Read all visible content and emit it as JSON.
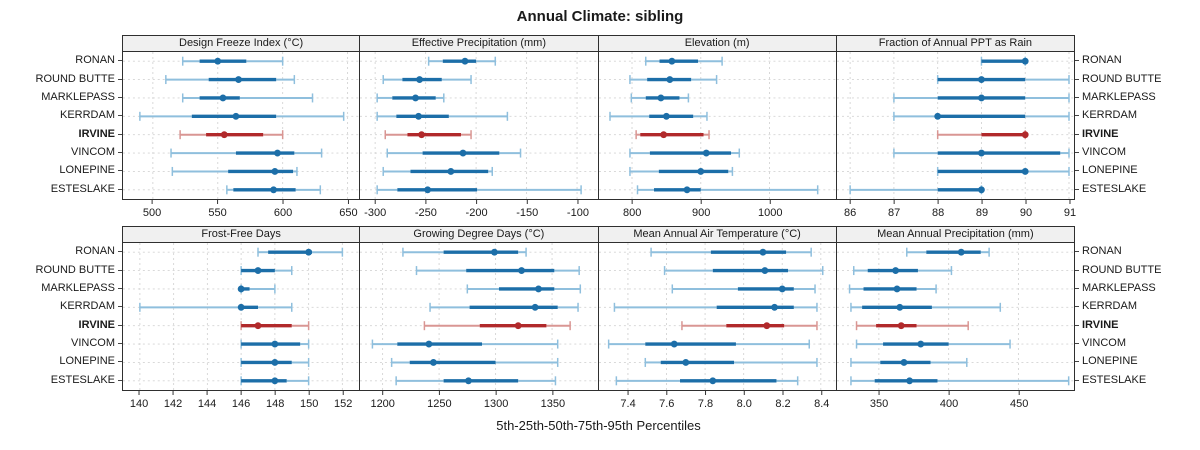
{
  "title": "Annual Climate: sibling",
  "xlabel": "5th-25th-50th-75th-95th Percentiles",
  "stations": [
    "RONAN",
    "ROUND BUTTE",
    "MARKLEPASS",
    "KERRDAM",
    "IRVINE",
    "VINCOM",
    "LONEPINE",
    "ESTESLAKE"
  ],
  "highlight_station": "IRVINE",
  "colors": {
    "series_dark": "#1C6EA8",
    "series_light": "#8FBFDD",
    "highlight_dark": "#B1292B",
    "highlight_light": "#D99693",
    "grid": "#D4D4D4",
    "strip_bg": "#F0F0F0",
    "border": "#2F2F2F"
  },
  "chart_data": {
    "type": "scatter",
    "style": "trellis dot-whisker percentile plot (5th-25th-50th-75th-95th)",
    "percentile_labels": [
      "5th",
      "25th",
      "50th",
      "75th",
      "95th"
    ],
    "layout": {
      "rows": 2,
      "cols": 4,
      "grid": "dotted",
      "y_categories_shared": true
    },
    "panels": [
      {
        "title": "Design Freeze Index (°C)",
        "domain": [
          477,
          659
        ],
        "ticks": [
          500,
          550,
          600,
          650
        ],
        "tick_labels": [
          "500",
          "550",
          "600",
          "650"
        ],
        "rows": [
          {
            "station": "RONAN",
            "values": [
              523,
              536,
              550,
              572,
              600
            ]
          },
          {
            "station": "ROUND BUTTE",
            "values": [
              510,
              543,
              566,
              595,
              609
            ]
          },
          {
            "station": "MARKLEPASS",
            "values": [
              523,
              536,
              554,
              567,
              623
            ]
          },
          {
            "station": "KERRDAM",
            "values": [
              490,
              530,
              564,
              595,
              647
            ]
          },
          {
            "station": "IRVINE",
            "values": [
              521,
              541,
              555,
              585,
              600
            ]
          },
          {
            "station": "VINCOM",
            "values": [
              514,
              564,
              596,
              609,
              630
            ]
          },
          {
            "station": "LONEPINE",
            "values": [
              515,
              558,
              594,
              608,
              611
            ]
          },
          {
            "station": "ESTESLAKE",
            "values": [
              557,
              562,
              593,
              610,
              629
            ]
          }
        ]
      },
      {
        "title": "Effective Precipitation (mm)",
        "domain": [
          -315,
          -80
        ],
        "ticks": [
          -300,
          -250,
          -200,
          -150,
          -100
        ],
        "tick_labels": [
          "-300",
          "-250",
          "-200",
          "-150",
          "-100"
        ],
        "rows": [
          {
            "station": "RONAN",
            "values": [
              -247,
              -233,
              -211,
              -200,
              -181
            ]
          },
          {
            "station": "ROUND BUTTE",
            "values": [
              -292,
              -273,
              -256,
              -234,
              -205
            ]
          },
          {
            "station": "MARKLEPASS",
            "values": [
              -298,
              -283,
              -260,
              -240,
              -232
            ]
          },
          {
            "station": "KERRDAM",
            "values": [
              -298,
              -279,
              -257,
              -227,
              -169
            ]
          },
          {
            "station": "IRVINE",
            "values": [
              -290,
              -268,
              -254,
              -215,
              -205
            ]
          },
          {
            "station": "VINCOM",
            "values": [
              -288,
              -253,
              -213,
              -177,
              -156
            ]
          },
          {
            "station": "LONEPINE",
            "values": [
              -292,
              -265,
              -225,
              -188,
              -184
            ]
          },
          {
            "station": "ESTESLAKE",
            "values": [
              -298,
              -278,
              -248,
              -199,
              -96
            ]
          }
        ]
      },
      {
        "title": "Elevation (m)",
        "domain": [
          752,
          1097
        ],
        "ticks": [
          800,
          900,
          1000
        ],
        "tick_labels": [
          "800",
          "900",
          "1000"
        ],
        "rows": [
          {
            "station": "RONAN",
            "values": [
              820,
              840,
              858,
              896,
              931
            ]
          },
          {
            "station": "ROUND BUTTE",
            "values": [
              797,
              822,
              855,
              886,
              923
            ]
          },
          {
            "station": "MARKLEPASS",
            "values": [
              799,
              820,
              842,
              869,
              882
            ]
          },
          {
            "station": "KERRDAM",
            "values": [
              768,
              825,
              850,
              889,
              909
            ]
          },
          {
            "station": "IRVINE",
            "values": [
              806,
              812,
              846,
              904,
              912
            ]
          },
          {
            "station": "VINCOM",
            "values": [
              797,
              826,
              908,
              944,
              956
            ]
          },
          {
            "station": "LONEPINE",
            "values": [
              797,
              839,
              900,
              940,
              946
            ]
          },
          {
            "station": "ESTESLAKE",
            "values": [
              808,
              832,
              880,
              900,
              1070
            ]
          }
        ]
      },
      {
        "title": "Fraction of Annual PPT as Rain",
        "domain": [
          85.7,
          91.12
        ],
        "ticks": [
          86,
          87,
          88,
          89,
          90,
          91
        ],
        "tick_labels": [
          "86",
          "87",
          "88",
          "89",
          "90",
          "91"
        ],
        "rows": [
          {
            "station": "RONAN",
            "values": [
              89,
              89,
              90,
              90,
              90
            ]
          },
          {
            "station": "ROUND BUTTE",
            "values": [
              88,
              88,
              89,
              90,
              91
            ]
          },
          {
            "station": "MARKLEPASS",
            "values": [
              87,
              88,
              89,
              90,
              91
            ]
          },
          {
            "station": "KERRDAM",
            "values": [
              87,
              88,
              88,
              90,
              91
            ]
          },
          {
            "station": "IRVINE",
            "values": [
              88,
              89,
              90,
              90,
              90
            ]
          },
          {
            "station": "VINCOM",
            "values": [
              87,
              88,
              89,
              90.8,
              91
            ]
          },
          {
            "station": "LONEPINE",
            "values": [
              88,
              88,
              90,
              90,
              91
            ]
          },
          {
            "station": "ESTESLAKE",
            "values": [
              86,
              88,
              89,
              89,
              89
            ]
          }
        ]
      },
      {
        "title": "Frost-Free Days",
        "domain": [
          139,
          153
        ],
        "ticks": [
          140,
          142,
          144,
          146,
          148,
          150,
          152
        ],
        "tick_labels": [
          "140",
          "142",
          "144",
          "146",
          "148",
          "150",
          "152"
        ],
        "rows": [
          {
            "station": "RONAN",
            "values": [
              147,
              147.6,
              150,
              150.2,
              152
            ]
          },
          {
            "station": "ROUND BUTTE",
            "values": [
              146,
              146,
              147,
              148,
              149
            ]
          },
          {
            "station": "MARKLEPASS",
            "values": [
              146,
              146,
              146,
              146.5,
              148
            ]
          },
          {
            "station": "KERRDAM",
            "values": [
              140,
              146,
              146,
              147,
              149
            ]
          },
          {
            "station": "IRVINE",
            "values": [
              146,
              146,
              147,
              149,
              150
            ]
          },
          {
            "station": "VINCOM",
            "values": [
              146,
              146,
              148,
              149.5,
              150
            ]
          },
          {
            "station": "LONEPINE",
            "values": [
              146,
              146,
              148,
              149,
              150
            ]
          },
          {
            "station": "ESTESLAKE",
            "values": [
              146,
              146,
              148,
              148.7,
              150
            ]
          }
        ]
      },
      {
        "title": "Growing Degree Days (°C)",
        "domain": [
          1180,
          1390
        ],
        "ticks": [
          1200,
          1250,
          1300,
          1350
        ],
        "tick_labels": [
          "1200",
          "1250",
          "1300",
          "1350"
        ],
        "rows": [
          {
            "station": "RONAN",
            "values": [
              1218,
              1254,
              1299,
              1320,
              1327
            ]
          },
          {
            "station": "ROUND BUTTE",
            "values": [
              1230,
              1274,
              1323,
              1352,
              1374
            ]
          },
          {
            "station": "MARKLEPASS",
            "values": [
              1275,
              1303,
              1338,
              1352,
              1375
            ]
          },
          {
            "station": "KERRDAM",
            "values": [
              1242,
              1277,
              1335,
              1355,
              1373
            ]
          },
          {
            "station": "IRVINE",
            "values": [
              1237,
              1286,
              1320,
              1345,
              1366
            ]
          },
          {
            "station": "VINCOM",
            "values": [
              1191,
              1213,
              1241,
              1288,
              1355
            ]
          },
          {
            "station": "LONEPINE",
            "values": [
              1208,
              1224,
              1245,
              1300,
              1355
            ]
          },
          {
            "station": "ESTESLAKE",
            "values": [
              1212,
              1254,
              1276,
              1320,
              1353
            ]
          }
        ]
      },
      {
        "title": "Mean Annual Air Temperature (°C)",
        "domain": [
          7.25,
          8.48
        ],
        "ticks": [
          7.4,
          7.6,
          7.8,
          8.0,
          8.2,
          8.4
        ],
        "tick_labels": [
          "7.4",
          "7.6",
          "7.8",
          "8.0",
          "8.2",
          "8.4"
        ],
        "rows": [
          {
            "station": "RONAN",
            "values": [
              7.52,
              7.83,
              8.1,
              8.22,
              8.35
            ]
          },
          {
            "station": "ROUND BUTTE",
            "values": [
              7.59,
              7.84,
              8.11,
              8.23,
              8.41
            ]
          },
          {
            "station": "MARKLEPASS",
            "values": [
              7.63,
              7.97,
              8.2,
              8.26,
              8.37
            ]
          },
          {
            "station": "KERRDAM",
            "values": [
              7.33,
              7.86,
              8.16,
              8.26,
              8.38
            ]
          },
          {
            "station": "IRVINE",
            "values": [
              7.68,
              7.91,
              8.12,
              8.21,
              8.38
            ]
          },
          {
            "station": "VINCOM",
            "values": [
              7.3,
              7.49,
              7.64,
              7.96,
              8.34
            ]
          },
          {
            "station": "LONEPINE",
            "values": [
              7.49,
              7.57,
              7.7,
              7.95,
              8.38
            ]
          },
          {
            "station": "ESTESLAKE",
            "values": [
              7.34,
              7.67,
              7.84,
              8.17,
              8.28
            ]
          }
        ]
      },
      {
        "title": "Mean Annual Precipitation (mm)",
        "domain": [
          320,
          490
        ],
        "ticks": [
          350,
          400,
          450
        ],
        "tick_labels": [
          "350",
          "400",
          "450"
        ],
        "rows": [
          {
            "station": "RONAN",
            "values": [
              370,
              384,
              409,
              423,
              429
            ]
          },
          {
            "station": "ROUND BUTTE",
            "values": [
              332,
              342,
              362,
              378,
              402
            ]
          },
          {
            "station": "MARKLEPASS",
            "values": [
              329,
              339,
              363,
              377,
              391
            ]
          },
          {
            "station": "KERRDAM",
            "values": [
              330,
              338,
              365,
              388,
              437
            ]
          },
          {
            "station": "IRVINE",
            "values": [
              334,
              348,
              366,
              377,
              414
            ]
          },
          {
            "station": "VINCOM",
            "values": [
              334,
              353,
              380,
              400,
              444
            ]
          },
          {
            "station": "LONEPINE",
            "values": [
              330,
              351,
              368,
              387,
              413
            ]
          },
          {
            "station": "ESTESLAKE",
            "values": [
              330,
              347,
              372,
              392,
              486
            ]
          }
        ]
      }
    ]
  }
}
